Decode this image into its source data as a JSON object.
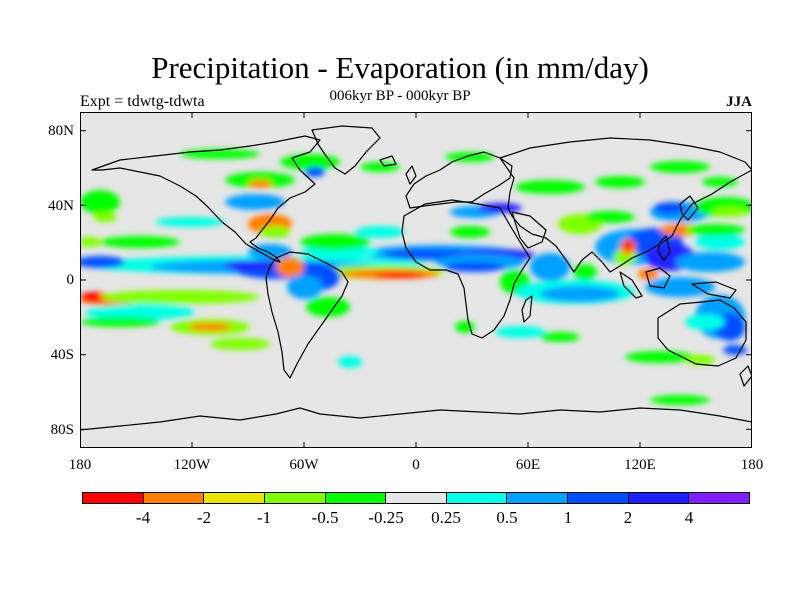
{
  "title": "Precipitation - Evaporation (in mm/day)",
  "subtitle": "006kyr BP - 000kyr BP",
  "left_label": "Expt = tdwtg-tdwta",
  "right_label": "JJA",
  "y_axis": {
    "ticks": [
      "80N",
      "40N",
      "0",
      "40S",
      "80S"
    ]
  },
  "x_axis": {
    "ticks": [
      "180",
      "120W",
      "60W",
      "0",
      "60E",
      "120E",
      "180"
    ]
  },
  "colorbar": {
    "colors": [
      "#ff0000",
      "#ff8000",
      "#e6e600",
      "#80ff00",
      "#00ff00",
      "#e6e6e6",
      "#00ffe6",
      "#00a0ff",
      "#0050ff",
      "#2020ff",
      "#8020ff"
    ],
    "labels": [
      "-4",
      "-2",
      "-1",
      "-0.5",
      "-0.25",
      "0.25",
      "0.5",
      "1",
      "2",
      "4"
    ]
  },
  "map": {
    "background": "#e6e6e6",
    "coastline": "#000000"
  }
}
